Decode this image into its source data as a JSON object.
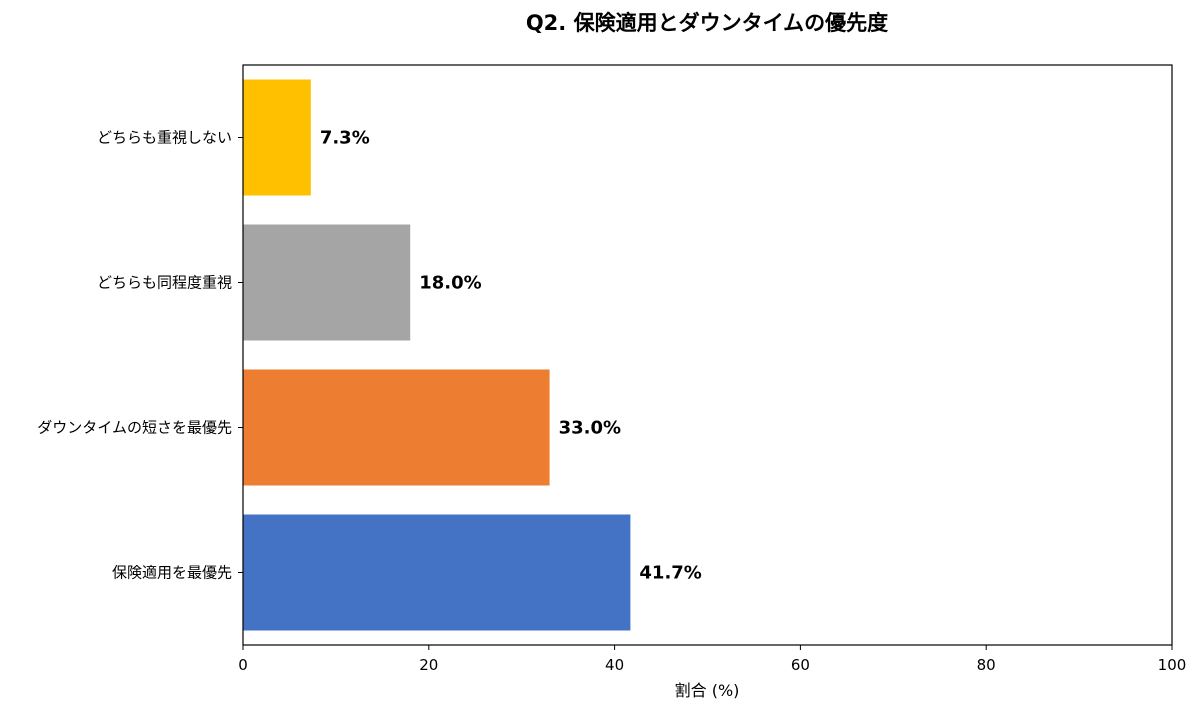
{
  "chart_data": {
    "type": "bar",
    "orientation": "horizontal",
    "title": "Q2. 保険適用とダウンタイムの優先度",
    "xlabel": "割合 (%)",
    "ylabel": "",
    "xlim": [
      0,
      100
    ],
    "xticks": [
      0,
      20,
      40,
      60,
      80,
      100
    ],
    "grid": false,
    "categories": [
      "保険適用を最優先",
      "ダウンタイムの短さを最優先",
      "どちらも同程度重視",
      "どちらも重視しない"
    ],
    "values": [
      41.7,
      33.0,
      18.0,
      7.3
    ],
    "value_labels": [
      "41.7%",
      "33.0%",
      "18.0%",
      "7.3%"
    ],
    "colors": [
      "#4472C4",
      "#ED7D31",
      "#A5A5A5",
      "#FFC000"
    ]
  }
}
